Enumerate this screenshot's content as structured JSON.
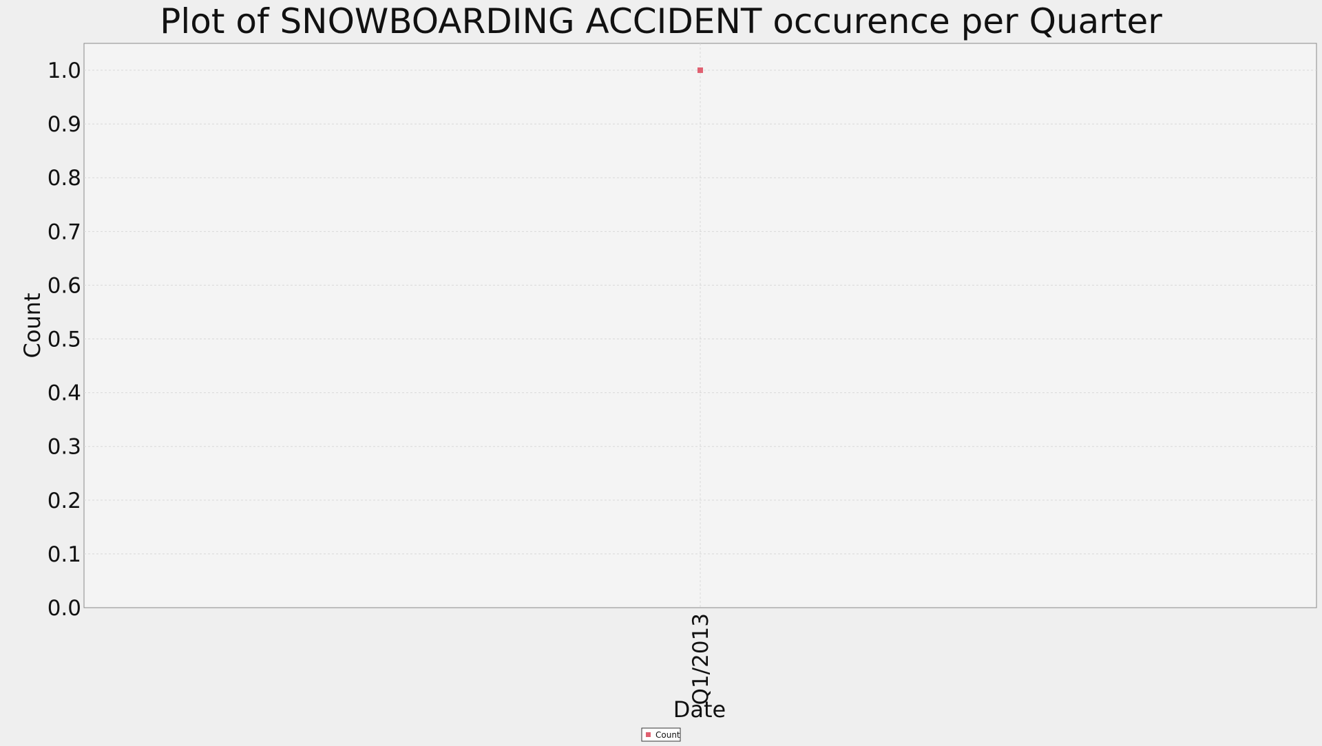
{
  "colors": {
    "background": "#efefef",
    "plot_background": "#f4f4f4",
    "grid": "#d8d8d8",
    "axis": "#888888",
    "series": "#e06070"
  },
  "chart_data": {
    "type": "scatter",
    "title": "Plot of SNOWBOARDING ACCIDENT occurence per Quarter",
    "xlabel": "Date",
    "ylabel": "Count",
    "categories": [
      "Q1/2013"
    ],
    "series": [
      {
        "name": "Count",
        "values": [
          1.0
        ]
      }
    ],
    "ylim": [
      0,
      1.05
    ],
    "yticks": [
      "0.0",
      "0.1",
      "0.2",
      "0.3",
      "0.4",
      "0.5",
      "0.6",
      "0.7",
      "0.8",
      "0.9",
      "1.0"
    ],
    "grid": true,
    "legend": "bottom-center"
  }
}
